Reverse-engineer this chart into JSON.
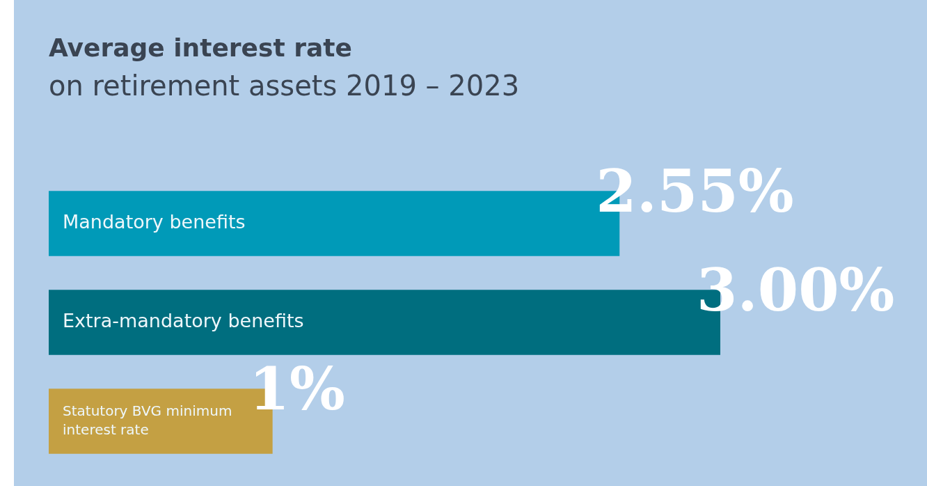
{
  "chart_data": {
    "type": "bar",
    "orientation": "horizontal",
    "title": "Average interest rate",
    "subtitle": "on retirement assets 2019 – 2023",
    "categories": [
      "Mandatory benefits",
      "Extra-mandatory benefits",
      "Statutory BVG minimum interest rate"
    ],
    "values": [
      2.55,
      3.0,
      1
    ],
    "colors": [
      "#009ab8",
      "#006e7f",
      "#c4a043"
    ],
    "value_labels": [
      "2.55%",
      "3.00%",
      "1%"
    ]
  }
}
